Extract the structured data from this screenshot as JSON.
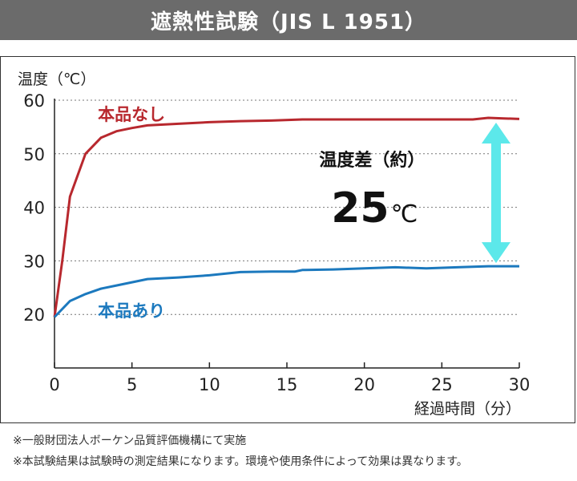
{
  "header": {
    "title": "遮熱性試験（JIS L 1951）"
  },
  "chart_data": {
    "type": "line",
    "ylabel": "温度（℃）",
    "xlabel": "経過時間（分）",
    "xlim": [
      0,
      30
    ],
    "ylim": [
      10,
      60
    ],
    "x_ticks": [
      "0",
      "5",
      "10",
      "15",
      "20",
      "25",
      "30"
    ],
    "y_ticks": [
      "20",
      "30",
      "40",
      "50",
      "60"
    ],
    "y_tick_values": [
      20,
      30,
      40,
      50,
      60
    ],
    "x_tick_values": [
      0,
      5,
      10,
      15,
      20,
      25,
      30
    ],
    "grid": "horizontal dotted",
    "series": [
      {
        "name": "本品なし",
        "color": "#b8282e",
        "x": [
          0,
          0.5,
          1,
          2,
          3,
          4,
          5,
          6,
          8,
          10,
          12,
          14,
          16,
          18,
          20,
          22,
          24,
          26,
          27,
          28,
          29,
          30
        ],
        "y": [
          19.5,
          30,
          42,
          50,
          53,
          54.2,
          54.8,
          55.3,
          55.6,
          55.9,
          56.1,
          56.2,
          56.4,
          56.4,
          56.4,
          56.4,
          56.4,
          56.4,
          56.4,
          56.7,
          56.6,
          56.5
        ]
      },
      {
        "name": "本品あり",
        "color": "#1c79be",
        "x": [
          0,
          1,
          2,
          3,
          4,
          5,
          6,
          8,
          10,
          11,
          12,
          14,
          15.5,
          16,
          18,
          20,
          22,
          24,
          26,
          28,
          30
        ],
        "y": [
          19.5,
          22.5,
          23.8,
          24.8,
          25.4,
          26,
          26.6,
          26.9,
          27.3,
          27.6,
          27.9,
          28,
          28,
          28.3,
          28.4,
          28.6,
          28.8,
          28.6,
          28.8,
          29,
          29
        ]
      }
    ],
    "annotation": {
      "label": "温度差（約）",
      "value": "25",
      "unit": "℃",
      "arrow_color": "#5ce8ea",
      "arrow_x": 28.5,
      "arrow_y_from": 29,
      "arrow_y_to": 56.4
    }
  },
  "footnotes": [
    "※一般財団法人ボーケン品質評価機構にて実施",
    "※本試験結果は試験時の測定結果になります。環境や使用条件によって効果は異なります。"
  ]
}
